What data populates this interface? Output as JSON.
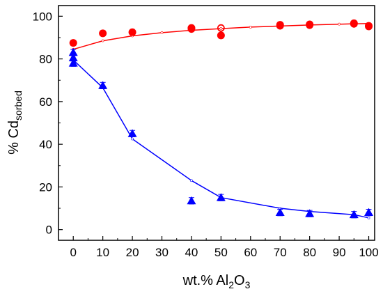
{
  "chart_data": {
    "type": "scatter",
    "title": "",
    "xlabel": {
      "prefix": "wt.% Al",
      "sub1": "2",
      "mid": "O",
      "sub2": "3"
    },
    "ylabel": {
      "prefix": "% Cd",
      "sub": "sorbed"
    },
    "xlim": [
      -5,
      102
    ],
    "ylim": [
      -5,
      105
    ],
    "xticks": [
      0,
      10,
      20,
      30,
      40,
      50,
      60,
      70,
      80,
      90,
      100
    ],
    "yticks": [
      0,
      20,
      40,
      60,
      80,
      100
    ],
    "grid": false,
    "legend": "none",
    "series": [
      {
        "marker": "circle",
        "color": "#ff0000",
        "points": [
          {
            "x": 0,
            "y": 87.5,
            "err": 1.2
          },
          {
            "x": 10,
            "y": 92.0,
            "err": 1.2
          },
          {
            "x": 20,
            "y": 92.5,
            "err": 1.0
          },
          {
            "x": 40,
            "y": 94.5,
            "err": 1.0
          },
          {
            "x": 50,
            "y": 91.0,
            "err": 1.2
          },
          {
            "x": 70,
            "y": 96.0,
            "err": 1.0
          },
          {
            "x": 80,
            "y": 96.2,
            "err": 1.0
          },
          {
            "x": 95,
            "y": 96.7,
            "err": 1.0
          },
          {
            "x": 100,
            "y": 95.5,
            "err": 1.2
          }
        ],
        "open_points": [
          {
            "x": 40,
            "y": 94.0
          },
          {
            "x": 50,
            "y": 94.5
          },
          {
            "x": 70,
            "y": 95.5
          },
          {
            "x": 80,
            "y": 95.8
          },
          {
            "x": 95,
            "y": 96.4
          },
          {
            "x": 100,
            "y": 95.2
          }
        ],
        "fit_line": [
          {
            "x": 0,
            "y": 84.5
          },
          {
            "x": 10,
            "y": 88.5
          },
          {
            "x": 20,
            "y": 90.8
          },
          {
            "x": 30,
            "y": 92.3
          },
          {
            "x": 40,
            "y": 93.4
          },
          {
            "x": 50,
            "y": 94.2
          },
          {
            "x": 60,
            "y": 94.9
          },
          {
            "x": 70,
            "y": 95.4
          },
          {
            "x": 80,
            "y": 95.9
          },
          {
            "x": 90,
            "y": 96.3
          },
          {
            "x": 100,
            "y": 96.6
          }
        ]
      },
      {
        "marker": "triangle",
        "color": "#0000ff",
        "points": [
          {
            "x": 0,
            "y": 83.0,
            "err": 1.5
          },
          {
            "x": 0,
            "y": 80.5,
            "err": 1.5
          },
          {
            "x": 0,
            "y": 78.0,
            "err": 1.5
          },
          {
            "x": 10,
            "y": 67.5,
            "err": 1.5
          },
          {
            "x": 20,
            "y": 45.0,
            "err": 1.5
          },
          {
            "x": 40,
            "y": 13.5,
            "err": 1.5
          },
          {
            "x": 50,
            "y": 15.0,
            "err": 1.5
          },
          {
            "x": 70,
            "y": 8.0,
            "err": 1.5
          },
          {
            "x": 80,
            "y": 7.5,
            "err": 1.5
          },
          {
            "x": 95,
            "y": 7.0,
            "err": 1.5
          },
          {
            "x": 100,
            "y": 8.0,
            "err": 1.5
          }
        ],
        "fit_line": [
          {
            "x": 0,
            "y": 79.5
          },
          {
            "x": 10,
            "y": 66.5
          },
          {
            "x": 20,
            "y": 42.5
          },
          {
            "x": 40,
            "y": 23.0
          },
          {
            "x": 50,
            "y": 15.0
          },
          {
            "x": 70,
            "y": 10.0
          },
          {
            "x": 80,
            "y": 8.5
          },
          {
            "x": 95,
            "y": 7.0
          },
          {
            "x": 100,
            "y": 5.5
          }
        ]
      }
    ]
  }
}
